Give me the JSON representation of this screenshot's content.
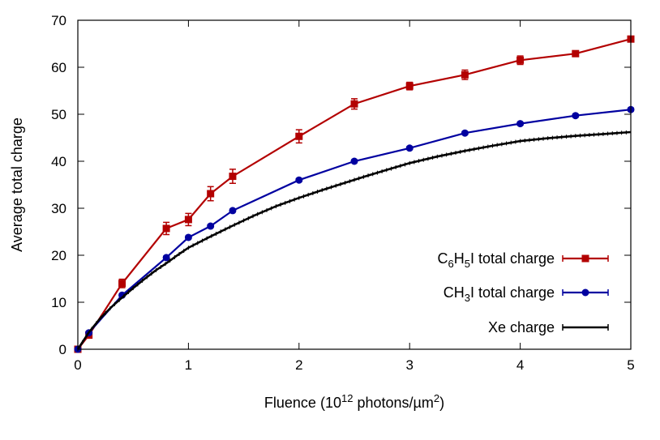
{
  "chart_data": {
    "type": "line",
    "title": "",
    "xlabel": "Fluence (10¹² photons/µm²)",
    "xlabel_parts": {
      "pre": "Fluence (10",
      "sup1": "12",
      "mid": " photons/µm",
      "sup2": "2",
      "post": ")"
    },
    "ylabel": "Average total charge",
    "xlim": [
      0,
      5
    ],
    "ylim": [
      0,
      70
    ],
    "xticks": [
      0,
      1,
      2,
      3,
      4,
      5
    ],
    "yticks": [
      0,
      10,
      20,
      30,
      40,
      50,
      60,
      70
    ],
    "grid": false,
    "legend_position": "bottom-right",
    "series": [
      {
        "name": "C6H5I total charge",
        "legend_parts": [
          "C",
          "6",
          "H",
          "5",
          "I total charge"
        ],
        "color": "#b30000",
        "marker": "square",
        "x": [
          0,
          0.1,
          0.4,
          0.8,
          1.0,
          1.2,
          1.4,
          2.0,
          2.5,
          3.0,
          3.5,
          4.0,
          4.5,
          5.0
        ],
        "y": [
          0,
          3.0,
          14.0,
          25.7,
          27.6,
          33.1,
          36.8,
          45.3,
          52.2,
          56.0,
          58.4,
          61.5,
          62.9,
          66.0
        ],
        "err": [
          0,
          0.5,
          0.9,
          1.3,
          1.3,
          1.5,
          1.5,
          1.4,
          1.1,
          0.8,
          1.0,
          0.9,
          0.5,
          0.5
        ]
      },
      {
        "name": "CH3I total charge",
        "legend_parts": [
          "CH",
          "3",
          "I total charge"
        ],
        "color": "#0000a0",
        "marker": "circle",
        "x": [
          0,
          0.1,
          0.4,
          0.8,
          1.0,
          1.2,
          1.4,
          2.0,
          2.5,
          3.0,
          3.5,
          4.0,
          4.5,
          5.0
        ],
        "y": [
          0,
          3.5,
          11.5,
          19.5,
          23.8,
          26.2,
          29.5,
          36.0,
          40.0,
          42.8,
          46.0,
          48.0,
          49.7,
          51.0
        ],
        "err": [
          0,
          0.3,
          0.3,
          0.3,
          0.3,
          0.3,
          0.3,
          0.3,
          0.3,
          0.3,
          0.3,
          0.3,
          0.3,
          0.3
        ]
      },
      {
        "name": "Xe charge",
        "legend_parts": [
          "Xe charge"
        ],
        "color": "#000000",
        "marker": "none",
        "x": [
          0,
          0.1,
          0.2,
          0.3,
          0.4,
          0.5,
          0.6,
          0.7,
          0.8,
          0.9,
          1.0,
          1.2,
          1.4,
          1.6,
          1.8,
          2.0,
          2.2,
          2.4,
          2.6,
          2.8,
          3.0,
          3.25,
          3.5,
          3.75,
          4.0,
          4.25,
          4.5,
          4.75,
          5.0
        ],
        "y": [
          0,
          3.6,
          6.5,
          8.9,
          11.0,
          13.0,
          14.9,
          16.7,
          18.3,
          20.0,
          21.6,
          24.0,
          26.3,
          28.5,
          30.5,
          32.2,
          33.8,
          35.3,
          36.8,
          38.2,
          39.6,
          41.0,
          42.2,
          43.3,
          44.3,
          44.9,
          45.4,
          45.8,
          46.2
        ]
      }
    ]
  }
}
